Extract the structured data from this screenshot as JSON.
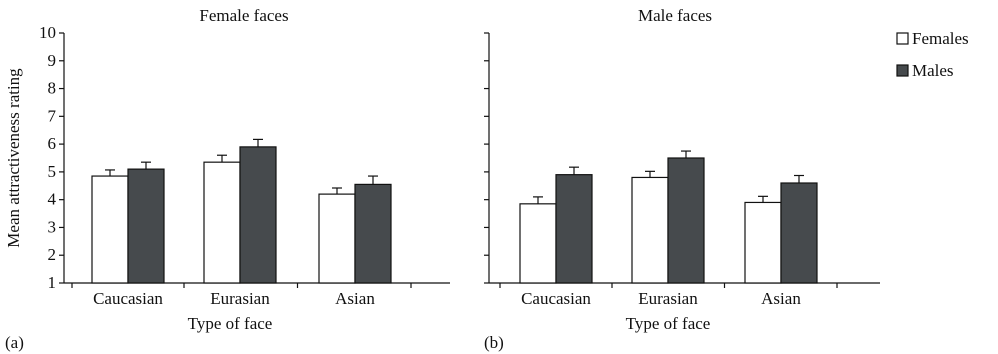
{
  "ylabel": "Mean attractiveness rating",
  "legend": [
    {
      "label": "Females",
      "color": "#ffffff"
    },
    {
      "label": "Males",
      "color": "#464a4d"
    }
  ],
  "chart_data": [
    {
      "type": "bar",
      "title": "Female faces",
      "panel_label": "(a)",
      "xlabel": "Type of face",
      "ylabel": "Mean attractiveness rating",
      "ylim": [
        1,
        10
      ],
      "yticks": [
        "1",
        "2",
        "3",
        "4",
        "5",
        "6",
        "7",
        "8",
        "9",
        "10"
      ],
      "categories": [
        "Caucasian",
        "Eurasian",
        "Asian"
      ],
      "series": [
        {
          "name": "Females",
          "values": [
            4.85,
            5.35,
            4.2
          ],
          "errors": [
            0.22,
            0.25,
            0.22
          ]
        },
        {
          "name": "Males",
          "values": [
            5.1,
            5.9,
            4.55
          ],
          "errors": [
            0.25,
            0.27,
            0.3
          ]
        }
      ]
    },
    {
      "type": "bar",
      "title": "Male faces",
      "panel_label": "(b)",
      "xlabel": "Type of face",
      "ylim": [
        1,
        10
      ],
      "categories": [
        "Caucasian",
        "Eurasian",
        "Asian"
      ],
      "series": [
        {
          "name": "Females",
          "values": [
            3.85,
            4.8,
            3.9
          ],
          "errors": [
            0.25,
            0.22,
            0.22
          ]
        },
        {
          "name": "Males",
          "values": [
            4.9,
            5.5,
            4.6
          ],
          "errors": [
            0.27,
            0.25,
            0.27
          ]
        }
      ]
    }
  ]
}
